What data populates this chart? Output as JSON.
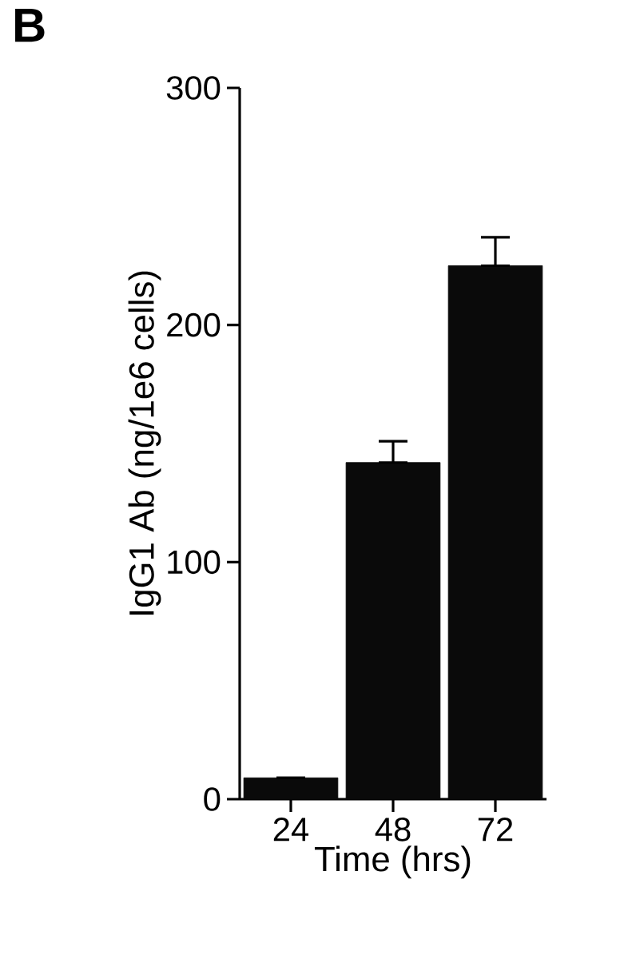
{
  "chart_data": {
    "type": "bar",
    "xlabel": "Time (hrs)",
    "ylabel": "IgG1 Ab (ng/1e6 cells)",
    "annotations": [
      "**B**"
    ],
    "categories": [
      "24",
      "48",
      "72"
    ],
    "values": [
      9,
      142,
      225
    ],
    "errors": [
      null,
      [
        142,
        151
      ],
      [
        225,
        237
      ]
    ],
    "color": "#0a0a0a",
    "ylim": [
      0,
      300
    ],
    "yticks": [
      0,
      100,
      200,
      300
    ],
    "grid": false
  }
}
